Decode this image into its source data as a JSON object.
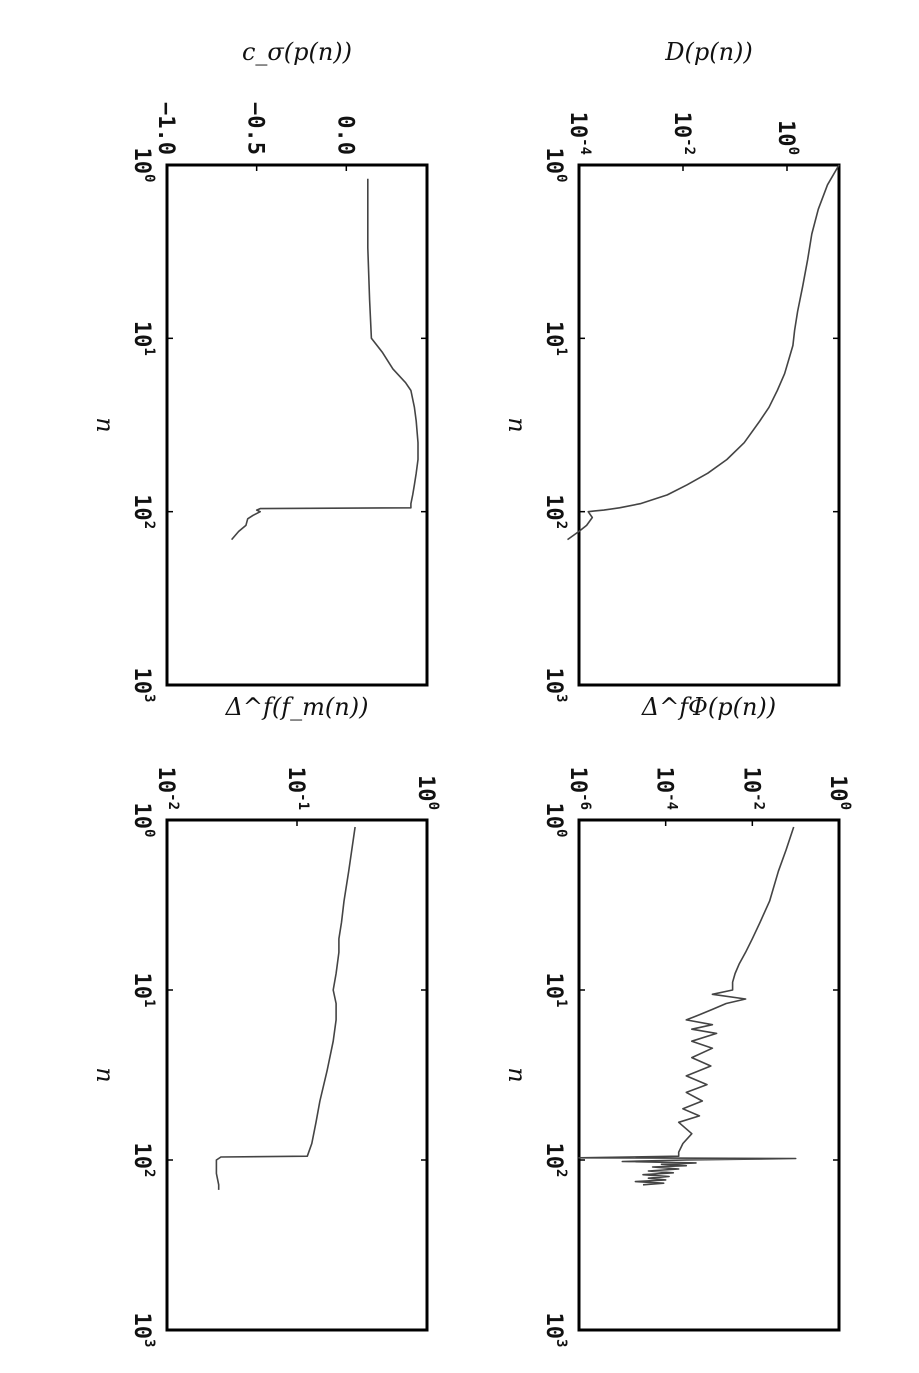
{
  "chart_data": [
    {
      "type": "line",
      "panel": "top-left",
      "ylabel": "D(p(n))",
      "xlabel": "n",
      "xscale": "log",
      "yscale": "log",
      "xlim": [
        1,
        1000
      ],
      "ylim": [
        0.0001,
        10
      ],
      "x_ticks": [
        "10^0",
        "10^1",
        "10^2",
        "10^3"
      ],
      "y_ticks": [
        "10^0",
        "10^-2",
        "10^-4"
      ],
      "series": [
        {
          "x": [
            1,
            1.3,
            1.8,
            2.5,
            3.5,
            5,
            7,
            9,
            11,
            13,
            16,
            20,
            25,
            30,
            40,
            50,
            60,
            70,
            80,
            90,
            95,
            98,
            99,
            100,
            108,
            120,
            130,
            145
          ],
          "y": [
            10,
            6,
            4,
            3,
            2.5,
            2,
            1.6,
            1.4,
            1.3,
            1.1,
            0.9,
            0.65,
            0.45,
            0.3,
            0.15,
            0.07,
            0.03,
            0.012,
            0.005,
            0.0015,
            0.0006,
            0.0003,
            0.0002,
            0.00015,
            0.00018,
            0.00014,
            0.0001,
            6e-05
          ]
        }
      ]
    },
    {
      "type": "line",
      "panel": "top-right",
      "ylabel": "Δ^fΦ(p(n))",
      "xlabel": "n",
      "xscale": "log",
      "yscale": "log",
      "xlim": [
        1,
        1000
      ],
      "ylim": [
        1e-06,
        1
      ],
      "x_ticks": [
        "10^0",
        "10^1",
        "10^2",
        "10^3"
      ],
      "y_ticks": [
        "10^0",
        "10^-2",
        "10^-4",
        "10^-6"
      ],
      "series": [
        {
          "x": [
            1.1,
            1.5,
            2,
            3,
            4,
            5,
            6,
            7,
            8,
            9,
            10,
            10.6,
            11.3,
            12,
            13,
            14,
            15,
            16,
            17,
            18,
            20,
            22,
            25,
            28,
            32,
            36,
            40,
            45,
            50,
            55,
            60,
            70,
            80,
            90,
            95,
            97,
            98,
            100,
            102,
            104,
            106,
            108,
            110,
            113,
            116,
            119,
            122,
            125,
            128,
            131,
            134,
            137,
            140
          ],
          "y": [
            0.09,
            0.06,
            0.04,
            0.025,
            0.015,
            0.01,
            0.007,
            0.005,
            0.004,
            0.0035,
            0.0035,
            0.0012,
            0.007,
            0.0025,
            0.0012,
            0.0006,
            0.0003,
            0.0012,
            0.0004,
            0.0015,
            0.0004,
            0.0012,
            0.0004,
            0.0011,
            0.0003,
            0.0009,
            0.0003,
            0.0007,
            0.00025,
            0.0006,
            0.0002,
            0.0004,
            0.00025,
            0.0002,
            0.0002,
            1e-06,
            0.1,
            0.0003,
            1e-05,
            0.0005,
            8e-05,
            0.0003,
            5e-05,
            0.0002,
            4e-05,
            0.00015,
            3e-05,
            0.00012,
            4e-05,
            0.0001,
            2e-05,
            9e-05,
            3e-05
          ]
        }
      ]
    },
    {
      "type": "line",
      "panel": "bottom-left",
      "ylabel": "c_σ(p(n))",
      "xlabel": "n",
      "xscale": "log",
      "yscale": "linear",
      "xlim": [
        1,
        1000
      ],
      "ylim": [
        -1.0,
        0.45
      ],
      "x_ticks": [
        "10^0",
        "10^1",
        "10^2",
        "10^3"
      ],
      "y_ticks": [
        "0.0",
        "-0.5",
        "-1.0"
      ],
      "series": [
        {
          "x": [
            1.2,
            3,
            6,
            10,
            12,
            15,
            18,
            20,
            25,
            30,
            40,
            50,
            60,
            70,
            80,
            90,
            95,
            96,
            98,
            100,
            105,
            110,
            120,
            130,
            145
          ],
          "y": [
            0.12,
            0.12,
            0.13,
            0.14,
            0.2,
            0.26,
            0.33,
            0.36,
            0.38,
            0.39,
            0.4,
            0.4,
            0.39,
            0.38,
            0.37,
            0.36,
            0.36,
            -0.48,
            -0.5,
            -0.48,
            -0.52,
            -0.55,
            -0.56,
            -0.6,
            -0.64
          ]
        }
      ]
    },
    {
      "type": "line",
      "panel": "bottom-right",
      "ylabel": "Δ^f(f_m(n))",
      "xlabel": "n",
      "xscale": "log",
      "yscale": "log",
      "xlim": [
        1,
        1000
      ],
      "ylim": [
        0.01,
        1
      ],
      "x_ticks": [
        "10^0",
        "10^1",
        "10^2",
        "10^3"
      ],
      "y_ticks": [
        "10^0",
        "10^-1",
        "10^-2"
      ],
      "series": [
        {
          "x": [
            1.1,
            2,
            3,
            4,
            5,
            6,
            8,
            10,
            12,
            15,
            20,
            30,
            45,
            60,
            80,
            95,
            96,
            100,
            120,
            140,
            150
          ],
          "y": [
            0.28,
            0.25,
            0.23,
            0.22,
            0.21,
            0.21,
            0.2,
            0.19,
            0.2,
            0.2,
            0.19,
            0.17,
            0.15,
            0.14,
            0.13,
            0.12,
            0.026,
            0.024,
            0.024,
            0.025,
            0.025
          ]
        }
      ]
    }
  ]
}
